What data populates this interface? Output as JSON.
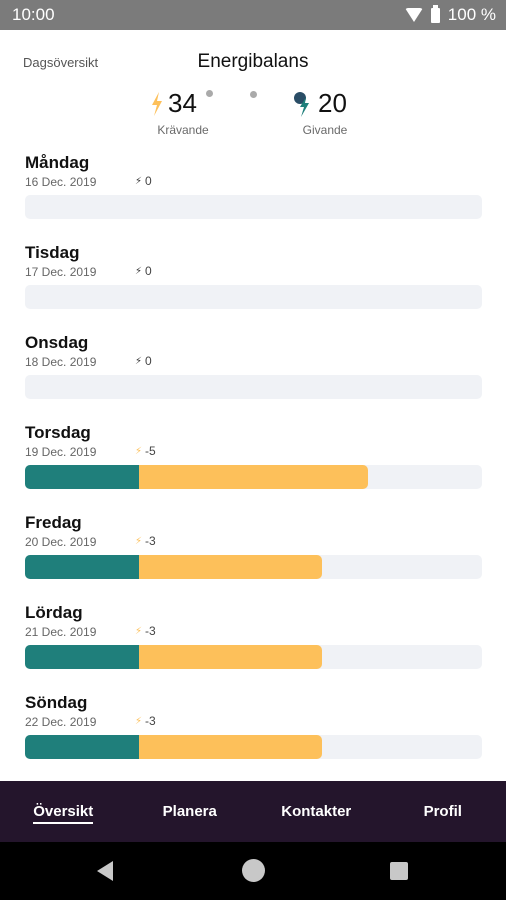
{
  "status": {
    "time": "10:00",
    "battery": "100 %"
  },
  "header": {
    "tab_label": "Dagsöversikt",
    "title": "Energibalans",
    "demanding_value": "34",
    "demanding_label": "Krävande",
    "giving_value": "20",
    "giving_label": "Givande"
  },
  "days": [
    {
      "name": "Måndag",
      "date": "16 Dec. 2019",
      "value": "0",
      "icon": "giving-bolt-icon",
      "teal_pct": 0,
      "yellow_pct": 0
    },
    {
      "name": "Tisdag",
      "date": "17 Dec. 2019",
      "value": "0",
      "icon": "giving-bolt-icon",
      "teal_pct": 0,
      "yellow_pct": 0
    },
    {
      "name": "Onsdag",
      "date": "18 Dec. 2019",
      "value": "0",
      "icon": "giving-bolt-icon",
      "teal_pct": 0,
      "yellow_pct": 0
    },
    {
      "name": "Torsdag",
      "date": "19 Dec. 2019",
      "value": "-5",
      "icon": "demanding-bolt-icon",
      "teal_pct": 25,
      "yellow_pct": 50
    },
    {
      "name": "Fredag",
      "date": "20 Dec. 2019",
      "value": "-3",
      "icon": "demanding-bolt-icon",
      "teal_pct": 25,
      "yellow_pct": 40
    },
    {
      "name": "Lördag",
      "date": "21 Dec. 2019",
      "value": "-3",
      "icon": "demanding-bolt-icon",
      "teal_pct": 25,
      "yellow_pct": 40
    },
    {
      "name": "Söndag",
      "date": "22 Dec. 2019",
      "value": "-3",
      "icon": "demanding-bolt-icon",
      "teal_pct": 25,
      "yellow_pct": 40
    }
  ],
  "nav": {
    "items": [
      "Översikt",
      "Planera",
      "Kontakter",
      "Profil"
    ],
    "active": "Översikt"
  },
  "colors": {
    "teal": "#1f7f7b",
    "yellow": "#fdc05a",
    "nav_bg": "#24152c",
    "bar_bg": "#f0f2f6"
  }
}
